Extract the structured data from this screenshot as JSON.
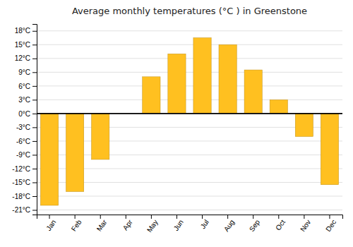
{
  "chart_data": {
    "type": "bar",
    "title": "Average monthly temperatures (°C ) in Greenstone",
    "categories": [
      "Jan",
      "Feb",
      "Mar",
      "Apr",
      "May",
      "Jun",
      "Jul",
      "Aug",
      "Sep",
      "Oct",
      "Nov",
      "Dec"
    ],
    "values": [
      -20,
      -17,
      -10,
      0,
      8,
      13,
      16.5,
      15,
      9.5,
      3,
      -5,
      -15.5
    ],
    "color": "#FFC020",
    "ylim": [
      -22,
      19.5
    ],
    "yticks": [
      {
        "value": -21,
        "label": "-21°C"
      },
      {
        "value": -18,
        "label": "-18°C"
      },
      {
        "value": -15,
        "label": "-15°C"
      },
      {
        "value": -12,
        "label": "-12°C"
      },
      {
        "value": -9,
        "label": "-9°C"
      },
      {
        "value": -6,
        "label": "-6°C"
      },
      {
        "value": -3,
        "label": "-3°C"
      },
      {
        "value": 0,
        "label": "0°C"
      },
      {
        "value": 3,
        "label": "3°C"
      },
      {
        "value": 6,
        "label": "6°C"
      },
      {
        "value": 9,
        "label": "9°C"
      },
      {
        "value": 12,
        "label": "12°C"
      },
      {
        "value": 15,
        "label": "15°C"
      },
      {
        "value": 18,
        "label": "18°C"
      }
    ],
    "grid": true
  }
}
